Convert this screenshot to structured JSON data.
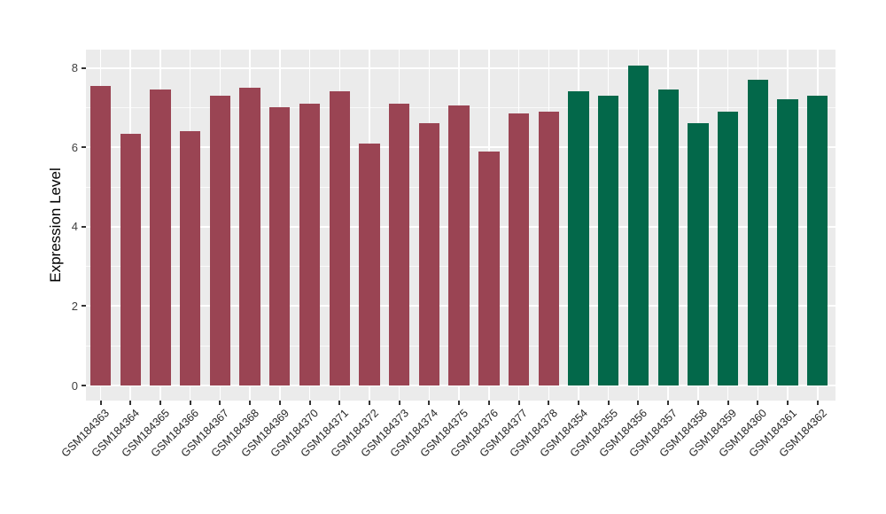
{
  "figure": {
    "background": "#FFFFFF",
    "panel_background": "#EBEBEB",
    "grid_color": "#FFFFFF",
    "axis_text_color": "#404040"
  },
  "chart_data": {
    "type": "bar",
    "title": "",
    "xlabel": "",
    "ylabel": "Expression Level",
    "ylim": [
      0,
      8
    ],
    "ylim_expanded": [
      -0.38,
      8.46
    ],
    "yticks": [
      0,
      2,
      4,
      6,
      8
    ],
    "minor_yticks": [
      1,
      3,
      5,
      7
    ],
    "grid": "on",
    "legend": "none",
    "group_colors": {
      "group1": "#9A4453",
      "group2": "#03684A"
    },
    "bars": [
      {
        "label": "GSM184363",
        "value": 7.55,
        "group": "group1"
      },
      {
        "label": "GSM184364",
        "value": 6.35,
        "group": "group1"
      },
      {
        "label": "GSM184365",
        "value": 7.45,
        "group": "group1"
      },
      {
        "label": "GSM184366",
        "value": 6.4,
        "group": "group1"
      },
      {
        "label": "GSM184367",
        "value": 7.3,
        "group": "group1"
      },
      {
        "label": "GSM184368",
        "value": 7.5,
        "group": "group1"
      },
      {
        "label": "GSM184369",
        "value": 7.0,
        "group": "group1"
      },
      {
        "label": "GSM184370",
        "value": 7.1,
        "group": "group1"
      },
      {
        "label": "GSM184371",
        "value": 7.4,
        "group": "group1"
      },
      {
        "label": "GSM184372",
        "value": 6.1,
        "group": "group1"
      },
      {
        "label": "GSM184373",
        "value": 7.1,
        "group": "group1"
      },
      {
        "label": "GSM184374",
        "value": 6.6,
        "group": "group1"
      },
      {
        "label": "GSM184375",
        "value": 7.05,
        "group": "group1"
      },
      {
        "label": "GSM184376",
        "value": 5.9,
        "group": "group1"
      },
      {
        "label": "GSM184377",
        "value": 6.85,
        "group": "group1"
      },
      {
        "label": "GSM184378",
        "value": 6.9,
        "group": "group1"
      },
      {
        "label": "GSM184354",
        "value": 7.4,
        "group": "group2"
      },
      {
        "label": "GSM184355",
        "value": 7.3,
        "group": "group2"
      },
      {
        "label": "GSM184356",
        "value": 8.05,
        "group": "group2"
      },
      {
        "label": "GSM184357",
        "value": 7.45,
        "group": "group2"
      },
      {
        "label": "GSM184358",
        "value": 6.6,
        "group": "group2"
      },
      {
        "label": "GSM184359",
        "value": 6.9,
        "group": "group2"
      },
      {
        "label": "GSM184360",
        "value": 7.7,
        "group": "group2"
      },
      {
        "label": "GSM184361",
        "value": 7.2,
        "group": "group2"
      },
      {
        "label": "GSM184362",
        "value": 7.3,
        "group": "group2"
      }
    ]
  }
}
